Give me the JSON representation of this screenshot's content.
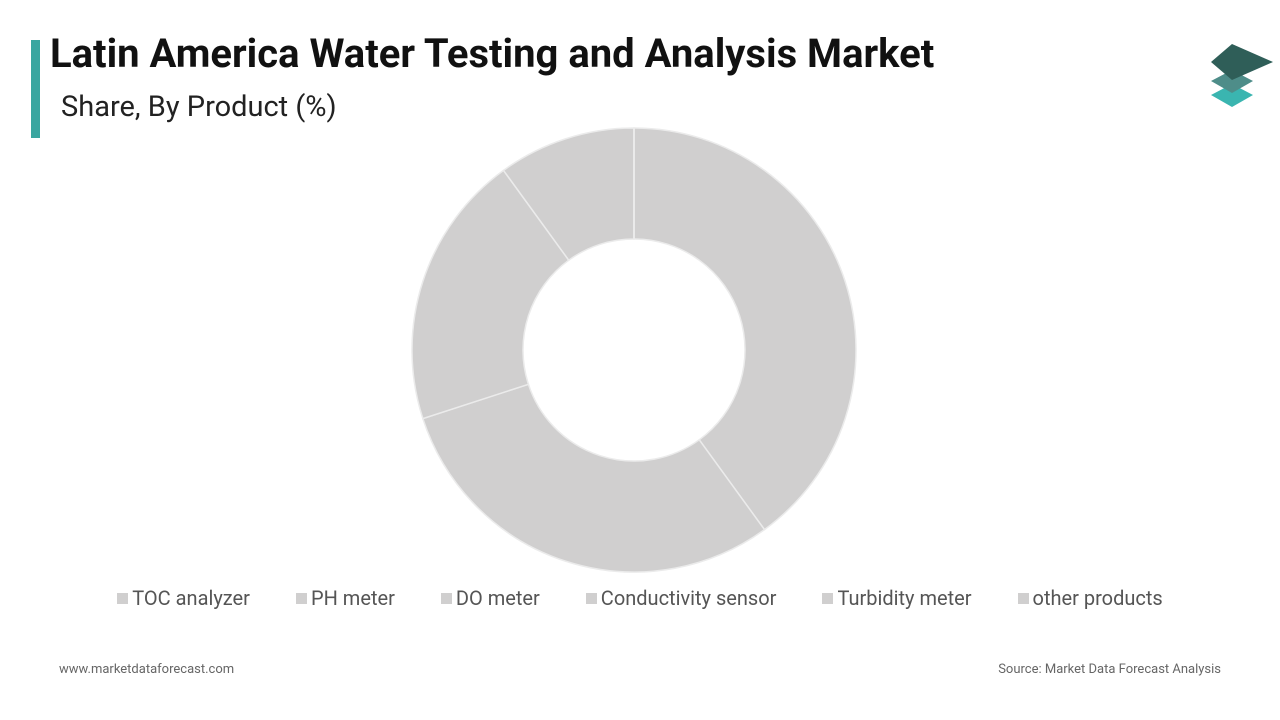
{
  "chart_data": {
    "type": "donut",
    "title": "Latin America Water Testing and Analysis Market",
    "subtitle": "Share, By Product (%)",
    "categories": [
      "TOC analyzer",
      "PH meter",
      "DO meter",
      "Conductivity sensor",
      "Turbidity meter",
      "other products"
    ],
    "values": [
      40,
      30,
      20,
      10,
      0,
      0
    ],
    "colors": [
      "#d0cfcf",
      "#d0cfcf",
      "#d0cfcf",
      "#d0cfcf",
      "#d0cfcf",
      "#d0cfcf"
    ]
  },
  "footer": {
    "website": "www.marketdataforecast.com",
    "source": "Source: Market Data Forecast Analysis"
  }
}
